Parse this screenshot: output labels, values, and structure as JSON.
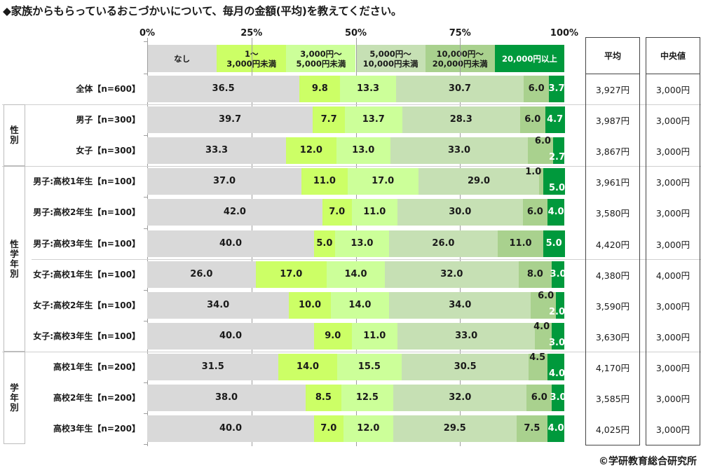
{
  "chart_data": {
    "type": "bar",
    "orientation": "horizontal-stacked-100",
    "title": "◆家族からもらっているおこづかいについて、毎月の金額(平均)を教えてください。",
    "xlabel": "",
    "ylabel": "",
    "xlim": [
      0,
      100
    ],
    "x_ticks": [
      "0%",
      "25%",
      "50%",
      "75%",
      "100%"
    ],
    "legend_placement": "top",
    "series": [
      {
        "name": "なし",
        "color": "#d9d9d9",
        "text_color": "#1a1a1a"
      },
      {
        "name": "1～\n3,000円未満",
        "color": "#ccff66",
        "text_color": "#1a1a1a"
      },
      {
        "name": "3,000円～\n5,000円未満",
        "color": "#ccff99",
        "text_color": "#1a1a1a"
      },
      {
        "name": "5,000円～\n10,000円未満",
        "color": "#c6e0b4",
        "text_color": "#1a1a1a"
      },
      {
        "name": "10,000円～\n20,000円未満",
        "color": "#a9d18e",
        "text_color": "#1a1a1a"
      },
      {
        "name": "20,000円以上",
        "color": "#00993c",
        "text_color": "#ffffff"
      }
    ],
    "groups": [
      {
        "name": "",
        "rows": [
          0
        ]
      },
      {
        "name": "性別",
        "rows": [
          1,
          2
        ]
      },
      {
        "name": "性学年別",
        "rows": [
          3,
          4,
          5,
          6,
          7,
          8
        ]
      },
      {
        "name": "学年別",
        "rows": [
          9,
          10,
          11
        ]
      }
    ],
    "categories": [
      "全体【n=600】",
      "男子【n=300】",
      "女子【n=300】",
      "男子:高校1年生【n=100】",
      "男子:高校2年生【n=100】",
      "男子:高校3年生【n=100】",
      "女子:高校1年生【n=100】",
      "女子:高校2年生【n=100】",
      "女子:高校3年生【n=100】",
      "高校1年生【n=200】",
      "高校2年生【n=200】",
      "高校3年生【n=200】"
    ],
    "values": [
      [
        36.5,
        9.8,
        13.3,
        30.7,
        6.0,
        3.7
      ],
      [
        39.7,
        7.7,
        13.7,
        28.3,
        6.0,
        4.7
      ],
      [
        33.3,
        12.0,
        13.0,
        33.0,
        6.0,
        2.7
      ],
      [
        37.0,
        11.0,
        17.0,
        29.0,
        1.0,
        5.0
      ],
      [
        42.0,
        7.0,
        11.0,
        30.0,
        6.0,
        4.0
      ],
      [
        40.0,
        5.0,
        13.0,
        26.0,
        11.0,
        5.0
      ],
      [
        26.0,
        17.0,
        14.0,
        32.0,
        8.0,
        3.0
      ],
      [
        34.0,
        10.0,
        14.0,
        34.0,
        6.0,
        2.0
      ],
      [
        40.0,
        9.0,
        11.0,
        33.0,
        4.0,
        3.0
      ],
      [
        31.5,
        14.0,
        15.5,
        30.5,
        4.5,
        4.0
      ],
      [
        38.0,
        8.5,
        12.5,
        32.0,
        6.0,
        3.0
      ],
      [
        40.0,
        7.0,
        12.0,
        29.5,
        7.5,
        4.0
      ]
    ],
    "value_labels": [
      [
        "36.5",
        "9.8",
        "13.3",
        "30.7",
        "6.0",
        "3.7"
      ],
      [
        "39.7",
        "7.7",
        "13.7",
        "28.3",
        "6.0",
        "4.7"
      ],
      [
        "33.3",
        "12.0",
        "13.0",
        "33.0",
        "6.0",
        "2.7"
      ],
      [
        "37.0",
        "11.0",
        "17.0",
        "29.0",
        "1.0",
        "5.0"
      ],
      [
        "42.0",
        "7.0",
        "11.0",
        "30.0",
        "6.0",
        "4.0"
      ],
      [
        "40.0",
        "5.0",
        "13.0",
        "26.0",
        "11.0",
        "5.0"
      ],
      [
        "26.0",
        "17.0",
        "14.0",
        "32.0",
        "8.0",
        "3.0"
      ],
      [
        "34.0",
        "10.0",
        "14.0",
        "34.0",
        "6.0",
        "2.0"
      ],
      [
        "40.0",
        "9.0",
        "11.0",
        "33.0",
        "4.0",
        "3.0"
      ],
      [
        "31.5",
        "14.0",
        "15.5",
        "30.5",
        "4.5",
        "4.0"
      ],
      [
        "38.0",
        "8.5",
        "12.5",
        "32.0",
        "6.0",
        "3.0"
      ],
      [
        "40.0",
        "7.0",
        "12.0",
        "29.5",
        "7.5",
        "4.0"
      ]
    ]
  },
  "table": {
    "headers": [
      "平均",
      "中央値"
    ],
    "average": [
      "3,927円",
      "3,987円",
      "3,867円",
      "3,961円",
      "3,580円",
      "4,420円",
      "4,380円",
      "3,590円",
      "3,630円",
      "4,170円",
      "3,585円",
      "4,025円"
    ],
    "median": [
      "3,000円",
      "3,000円",
      "3,000円",
      "3,000円",
      "3,000円",
      "3,000円",
      "4,000円",
      "3,000円",
      "3,000円",
      "3,000円",
      "3,000円",
      "3,000円"
    ]
  },
  "footer": {
    "copyright": "©学研教育総合研究所"
  }
}
